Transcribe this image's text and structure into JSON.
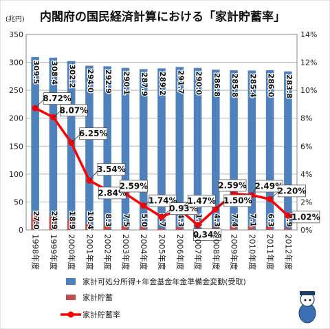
{
  "chart_data": {
    "type": "bar",
    "title": "内閣府の国民経済計算における「家計貯蓄率」",
    "y_unit_label": "(兆円)",
    "categories": [
      "1998年度",
      "1999年度",
      "2000年度",
      "2001年度",
      "2002年度",
      "2003年度",
      "2004年度",
      "2005年度",
      "2006年度",
      "2007年度",
      "2008年度",
      "2009年度",
      "2010年度",
      "2011年度",
      "2012年度"
    ],
    "series": [
      {
        "name": "家計可処分所得+年金基金年金準備金変動(受取)",
        "kind": "bar",
        "axis": "left",
        "color": "#4f81bd",
        "values": [
          309.5,
          308.4,
          302.2,
          294.0,
          292.9,
          290.1,
          287.9,
          289.2,
          291.7,
          290.0,
          286.8,
          285.8,
          285.4,
          286.0,
          283.8
        ],
        "labels": [
          "309.5",
          "308.4",
          "302.2",
          "294.0",
          "292.9",
          "290.1",
          "287.9",
          "289.2",
          "291.7",
          "290.0",
          "286.8",
          "285.8",
          "285.4",
          "286.0",
          "283.8"
        ]
      },
      {
        "name": "家計貯蓄",
        "kind": "bar",
        "axis": "left",
        "color": "#c0504d",
        "values": [
          27.0,
          24.9,
          18.9,
          10.4,
          8.3,
          7.5,
          5.0,
          2.7,
          4.3,
          1.0,
          4.3,
          7.4,
          7.1,
          6.3,
          2.9
        ],
        "labels": [
          "27.0",
          "24.9",
          "18.9",
          "10.4",
          "8.3",
          "7.5",
          "5.0",
          "2.7",
          "4.3",
          "1.0",
          "4.3",
          "7.4",
          "7.1",
          "6.3",
          "2.9"
        ]
      },
      {
        "name": "家計貯蓄率",
        "kind": "line",
        "axis": "right",
        "color": "#ff0000",
        "values": [
          8.72,
          8.07,
          6.25,
          3.54,
          2.84,
          2.59,
          1.74,
          0.93,
          1.47,
          0.34,
          1.5,
          2.59,
          2.49,
          2.2,
          1.02
        ],
        "labels": [
          "8.72%",
          "8.07%",
          "6.25%",
          "3.54%",
          "2.84%",
          "2.59%",
          "1.74%",
          "0.93%",
          "1.47%",
          "0.34%",
          "1.50%",
          "2.59%",
          "2.49%",
          "2.20%",
          "1.02%"
        ]
      }
    ],
    "y_left": {
      "min": 0,
      "max": 350,
      "ticks": [
        "0",
        "50",
        "100",
        "150",
        "200",
        "250",
        "300",
        "350"
      ]
    },
    "y_right": {
      "min": 0,
      "max": 14,
      "ticks": [
        "0%",
        "2%",
        "4%",
        "6%",
        "8%",
        "10%",
        "12%",
        "14%"
      ]
    },
    "grid": true,
    "legend_position": "bottom"
  }
}
